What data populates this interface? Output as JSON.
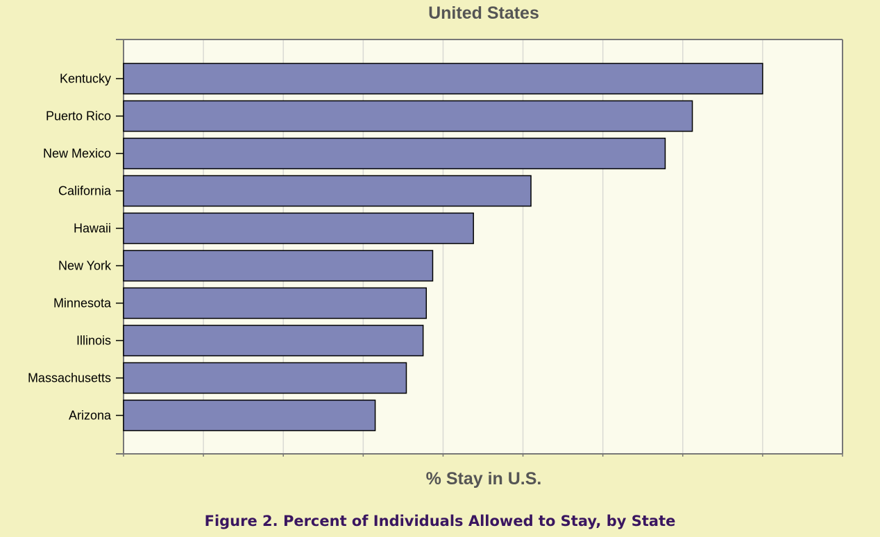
{
  "chart_data": {
    "type": "bar",
    "orientation": "horizontal",
    "title": "United States",
    "xlabel": "% Stay in U.S.",
    "ylabel": "",
    "categories": [
      "Kentucky",
      "Puerto Rico",
      "New Mexico",
      "California",
      "Hawaii",
      "New York",
      "Minnesota",
      "Illinois",
      "Massachusetts",
      "Arizona"
    ],
    "values": [
      80,
      71.2,
      67.8,
      51,
      43.8,
      38.7,
      37.9,
      37.5,
      35.4,
      31.5
    ],
    "xlim": [
      0,
      90
    ],
    "grid": true,
    "tick_labels_shown": false,
    "colors": {
      "bar_fill": "#8086b8",
      "bar_stroke": "#000000",
      "plot_background": "#fbfbec",
      "grid": "#d9d9d3",
      "axis": "#777777",
      "page_background": "#f3f2c0"
    }
  },
  "caption": "Figure 2. Percent of Individuals Allowed to Stay, by State"
}
